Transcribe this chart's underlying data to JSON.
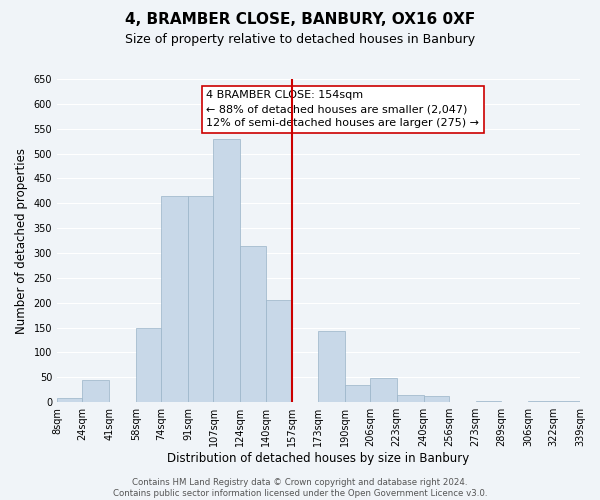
{
  "title": "4, BRAMBER CLOSE, BANBURY, OX16 0XF",
  "subtitle": "Size of property relative to detached houses in Banbury",
  "xlabel": "Distribution of detached houses by size in Banbury",
  "ylabel": "Number of detached properties",
  "bar_color": "#c8d8e8",
  "bar_edge_color": "#9ab4c8",
  "bar_left_edges": [
    8,
    24,
    41,
    58,
    74,
    91,
    107,
    124,
    140,
    157,
    173,
    190,
    206,
    223,
    240,
    256,
    273,
    289,
    306,
    322
  ],
  "bar_widths": [
    16,
    17,
    17,
    16,
    17,
    16,
    17,
    16,
    17,
    16,
    17,
    16,
    17,
    17,
    16,
    17,
    16,
    17,
    16,
    17
  ],
  "bar_heights": [
    8,
    44,
    0,
    150,
    415,
    415,
    530,
    315,
    205,
    0,
    143,
    35,
    48,
    14,
    12,
    0,
    3,
    0,
    2,
    2
  ],
  "xtick_labels": [
    "8sqm",
    "24sqm",
    "41sqm",
    "58sqm",
    "74sqm",
    "91sqm",
    "107sqm",
    "124sqm",
    "140sqm",
    "157sqm",
    "173sqm",
    "190sqm",
    "206sqm",
    "223sqm",
    "240sqm",
    "256sqm",
    "273sqm",
    "289sqm",
    "306sqm",
    "322sqm",
    "339sqm"
  ],
  "ylim": [
    0,
    650
  ],
  "yticks": [
    0,
    50,
    100,
    150,
    200,
    250,
    300,
    350,
    400,
    450,
    500,
    550,
    600,
    650
  ],
  "vline_x": 157,
  "vline_color": "#cc0000",
  "annotation_title": "4 BRAMBER CLOSE: 154sqm",
  "annotation_line1": "← 88% of detached houses are smaller (2,047)",
  "annotation_line2": "12% of semi-detached houses are larger (275) →",
  "footer_line1": "Contains HM Land Registry data © Crown copyright and database right 2024.",
  "footer_line2": "Contains public sector information licensed under the Open Government Licence v3.0.",
  "background_color": "#f0f4f8",
  "grid_color": "#ffffff",
  "title_fontsize": 11,
  "subtitle_fontsize": 9,
  "axis_label_fontsize": 8.5,
  "tick_fontsize": 7,
  "footer_fontsize": 6.2,
  "annotation_fontsize": 8
}
